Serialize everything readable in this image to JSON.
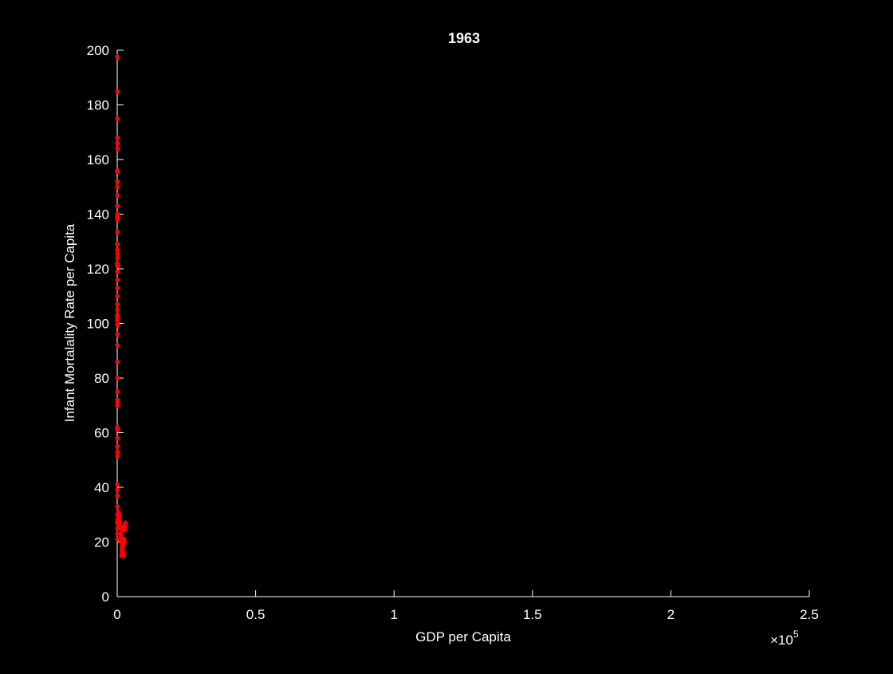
{
  "chart_data": {
    "type": "scatter",
    "title": "1963",
    "xlabel": "GDP per Capita",
    "ylabel": "Infant Mortalality Rate per Capita",
    "xlim": [
      0,
      250000
    ],
    "ylim": [
      0,
      200
    ],
    "x_tick_values": [
      0,
      50000,
      100000,
      150000,
      200000,
      250000
    ],
    "x_tick_labels": [
      "0",
      "0.5",
      "1",
      "1.5",
      "2",
      "2.5"
    ],
    "x_exponent_label": "×10",
    "x_exponent_power": "5",
    "y_tick_values": [
      0,
      20,
      40,
      60,
      80,
      100,
      120,
      140,
      160,
      180,
      200
    ],
    "y_tick_labels": [
      "0",
      "20",
      "40",
      "60",
      "80",
      "100",
      "120",
      "140",
      "160",
      "180",
      "200"
    ],
    "grid": false,
    "background": "#000000",
    "axis_color": "#ffffff",
    "marker_color": "#ff0000",
    "x": [
      100,
      100,
      100,
      100,
      100,
      100,
      100,
      100,
      100,
      100,
      100,
      100,
      100,
      100,
      100,
      100,
      100,
      100,
      100,
      100,
      100,
      100,
      100,
      100,
      100,
      100,
      100,
      100,
      100,
      100,
      100,
      100,
      100,
      100,
      100,
      100,
      100,
      100,
      100,
      100,
      100,
      100,
      100,
      100,
      100,
      100,
      100,
      100,
      100,
      100,
      100,
      100,
      100,
      100,
      100,
      100,
      100,
      500,
      800,
      600,
      900,
      700,
      1000,
      1200,
      1500,
      1200,
      1500,
      1000,
      1500,
      1800,
      1900,
      1800,
      1700,
      2000,
      2000,
      2200,
      2200,
      2300,
      2500,
      2500,
      2700,
      3000,
      2800,
      2500,
      2000,
      1800,
      1600
    ],
    "y": [
      197.5,
      185,
      175,
      168,
      166,
      164,
      156,
      155.5,
      152,
      150,
      147,
      143,
      140,
      139,
      138,
      133.5,
      129,
      127,
      125.5,
      124,
      122,
      121,
      119,
      116,
      113,
      110,
      107,
      105,
      103,
      102,
      101,
      99.5,
      96,
      92,
      86,
      80,
      75,
      72,
      71,
      70,
      62,
      61.5,
      61,
      58,
      55,
      53,
      51.5,
      41,
      39,
      37,
      33,
      30,
      28,
      27,
      25,
      23,
      21,
      31,
      30,
      29,
      27.5,
      26.5,
      26,
      25.5,
      24.5,
      23,
      22,
      21,
      20,
      19.5,
      19,
      18,
      17,
      16,
      15.5,
      15,
      19,
      20,
      21,
      20,
      26,
      27,
      24.5,
      25,
      17,
      16,
      15
    ]
  }
}
